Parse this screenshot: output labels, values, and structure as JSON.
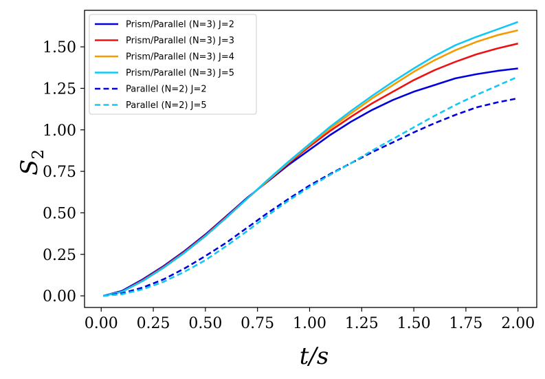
{
  "chart_data": {
    "type": "line",
    "title": "",
    "xlabel": "t/s",
    "ylabel": "S",
    "ylabel_subscript": "2",
    "xlim": [
      -0.08,
      2.09
    ],
    "ylim": [
      -0.07,
      1.72
    ],
    "xticks": [
      0.0,
      0.25,
      0.5,
      0.75,
      1.0,
      1.25,
      1.5,
      1.75,
      2.0
    ],
    "xtick_labels": [
      "0.00",
      "0.25",
      "0.50",
      "0.75",
      "1.00",
      "1.25",
      "1.50",
      "1.75",
      "2.00"
    ],
    "yticks": [
      0.0,
      0.25,
      0.5,
      0.75,
      1.0,
      1.25,
      1.5
    ],
    "ytick_labels": [
      "0.00",
      "0.25",
      "0.50",
      "0.75",
      "1.00",
      "1.25",
      "1.50"
    ],
    "grid": false,
    "legend_position": "top-left",
    "x": [
      0.01,
      0.1,
      0.2,
      0.3,
      0.4,
      0.5,
      0.6,
      0.7,
      0.8,
      0.9,
      1.0,
      1.1,
      1.2,
      1.3,
      1.4,
      1.5,
      1.6,
      1.7,
      1.8,
      1.9,
      2.0
    ],
    "series": [
      {
        "name": "Prism/Parallel (N=3) J=2",
        "color": "#0000dd",
        "dash": "solid",
        "values": [
          0.0,
          0.03,
          0.1,
          0.18,
          0.27,
          0.37,
          0.48,
          0.59,
          0.69,
          0.79,
          0.88,
          0.97,
          1.05,
          1.12,
          1.18,
          1.23,
          1.27,
          1.31,
          1.335,
          1.355,
          1.37
        ]
      },
      {
        "name": "Prism/Parallel (N=3) J=3",
        "color": "#ee1111",
        "dash": "solid",
        "values": [
          0.0,
          0.025,
          0.095,
          0.175,
          0.265,
          0.365,
          0.475,
          0.585,
          0.695,
          0.8,
          0.9,
          0.995,
          1.08,
          1.16,
          1.23,
          1.3,
          1.36,
          1.41,
          1.455,
          1.49,
          1.52
        ]
      },
      {
        "name": "Prism/Parallel (N=3) J=4",
        "color": "#f59a00",
        "dash": "solid",
        "values": [
          0.0,
          0.025,
          0.09,
          0.17,
          0.26,
          0.36,
          0.47,
          0.585,
          0.695,
          0.805,
          0.91,
          1.01,
          1.1,
          1.19,
          1.27,
          1.35,
          1.42,
          1.48,
          1.53,
          1.57,
          1.6
        ]
      },
      {
        "name": "Prism/Parallel (N=3) J=5",
        "color": "#11c8f5",
        "dash": "solid",
        "values": [
          0.0,
          0.025,
          0.09,
          0.17,
          0.26,
          0.36,
          0.47,
          0.585,
          0.7,
          0.81,
          0.915,
          1.02,
          1.115,
          1.205,
          1.29,
          1.37,
          1.445,
          1.51,
          1.56,
          1.605,
          1.65
        ]
      },
      {
        "name": "Parallel (N=2) J=2",
        "color": "#0000dd",
        "dash": "dashed",
        "values": [
          0.0,
          0.015,
          0.05,
          0.1,
          0.165,
          0.24,
          0.32,
          0.41,
          0.5,
          0.585,
          0.665,
          0.735,
          0.8,
          0.865,
          0.925,
          0.985,
          1.04,
          1.09,
          1.135,
          1.165,
          1.19
        ]
      },
      {
        "name": "Parallel (N=2) J=5",
        "color": "#11c8f5",
        "dash": "dashed",
        "values": [
          0.0,
          0.01,
          0.04,
          0.085,
          0.145,
          0.215,
          0.3,
          0.39,
          0.485,
          0.575,
          0.655,
          0.73,
          0.8,
          0.875,
          0.945,
          1.015,
          1.085,
          1.15,
          1.21,
          1.265,
          1.32
        ]
      }
    ]
  }
}
